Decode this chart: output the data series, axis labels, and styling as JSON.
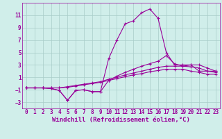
{
  "xlabel": "Windchill (Refroidissement éolien,°C)",
  "background_color": "#d0eeea",
  "grid_color": "#a8ccc8",
  "line_color": "#990099",
  "xlim": [
    -0.5,
    23.5
  ],
  "ylim": [
    -4,
    13
  ],
  "yticks": [
    -3,
    -1,
    1,
    3,
    5,
    7,
    9,
    11
  ],
  "xticks": [
    0,
    1,
    2,
    3,
    4,
    5,
    6,
    7,
    8,
    9,
    10,
    11,
    12,
    13,
    14,
    15,
    16,
    17,
    18,
    19,
    20,
    21,
    22,
    23
  ],
  "series": [
    {
      "x": [
        0,
        1,
        2,
        3,
        4,
        5,
        6,
        7,
        8,
        9,
        10,
        11,
        12,
        13,
        14,
        15,
        16,
        17,
        18,
        19,
        20,
        21,
        22,
        23
      ],
      "y": [
        -0.7,
        -0.7,
        -0.7,
        -0.8,
        -1.1,
        -2.7,
        -1.1,
        -1.0,
        -1.3,
        -1.3,
        4.0,
        7.0,
        9.6,
        10.1,
        11.4,
        12.0,
        10.5,
        5.0,
        3.0,
        3.0,
        3.0,
        2.0,
        2.0,
        2.0
      ]
    },
    {
      "x": [
        0,
        1,
        2,
        3,
        4,
        5,
        6,
        7,
        8,
        9,
        10,
        11,
        12,
        13,
        14,
        15,
        16,
        17,
        18,
        19,
        20,
        21,
        22,
        23
      ],
      "y": [
        -0.7,
        -0.7,
        -0.7,
        -0.8,
        -1.1,
        -2.7,
        -1.1,
        -1.0,
        -1.3,
        -1.3,
        0.5,
        1.2,
        1.8,
        2.3,
        2.8,
        3.2,
        3.6,
        4.5,
        3.2,
        2.8,
        3.0,
        3.0,
        2.5,
        2.0
      ]
    },
    {
      "x": [
        0,
        1,
        2,
        3,
        4,
        5,
        6,
        7,
        8,
        9,
        10,
        11,
        12,
        13,
        14,
        15,
        16,
        17,
        18,
        19,
        20,
        21,
        22,
        23
      ],
      "y": [
        -0.7,
        -0.7,
        -0.7,
        -0.7,
        -0.7,
        -0.5,
        -0.3,
        -0.1,
        0.1,
        0.3,
        0.7,
        1.0,
        1.4,
        1.7,
        2.0,
        2.3,
        2.6,
        2.8,
        2.8,
        2.8,
        2.7,
        2.5,
        2.0,
        1.8
      ]
    },
    {
      "x": [
        0,
        1,
        2,
        3,
        4,
        5,
        6,
        7,
        8,
        9,
        10,
        11,
        12,
        13,
        14,
        15,
        16,
        17,
        18,
        19,
        20,
        21,
        22,
        23
      ],
      "y": [
        -0.7,
        -0.7,
        -0.7,
        -0.7,
        -0.7,
        -0.6,
        -0.4,
        -0.2,
        0.0,
        0.2,
        0.5,
        0.8,
        1.1,
        1.4,
        1.6,
        1.9,
        2.1,
        2.3,
        2.3,
        2.3,
        2.0,
        1.8,
        1.5,
        1.5
      ]
    }
  ],
  "tick_fontsize": 5.5,
  "axis_fontsize": 6.5
}
